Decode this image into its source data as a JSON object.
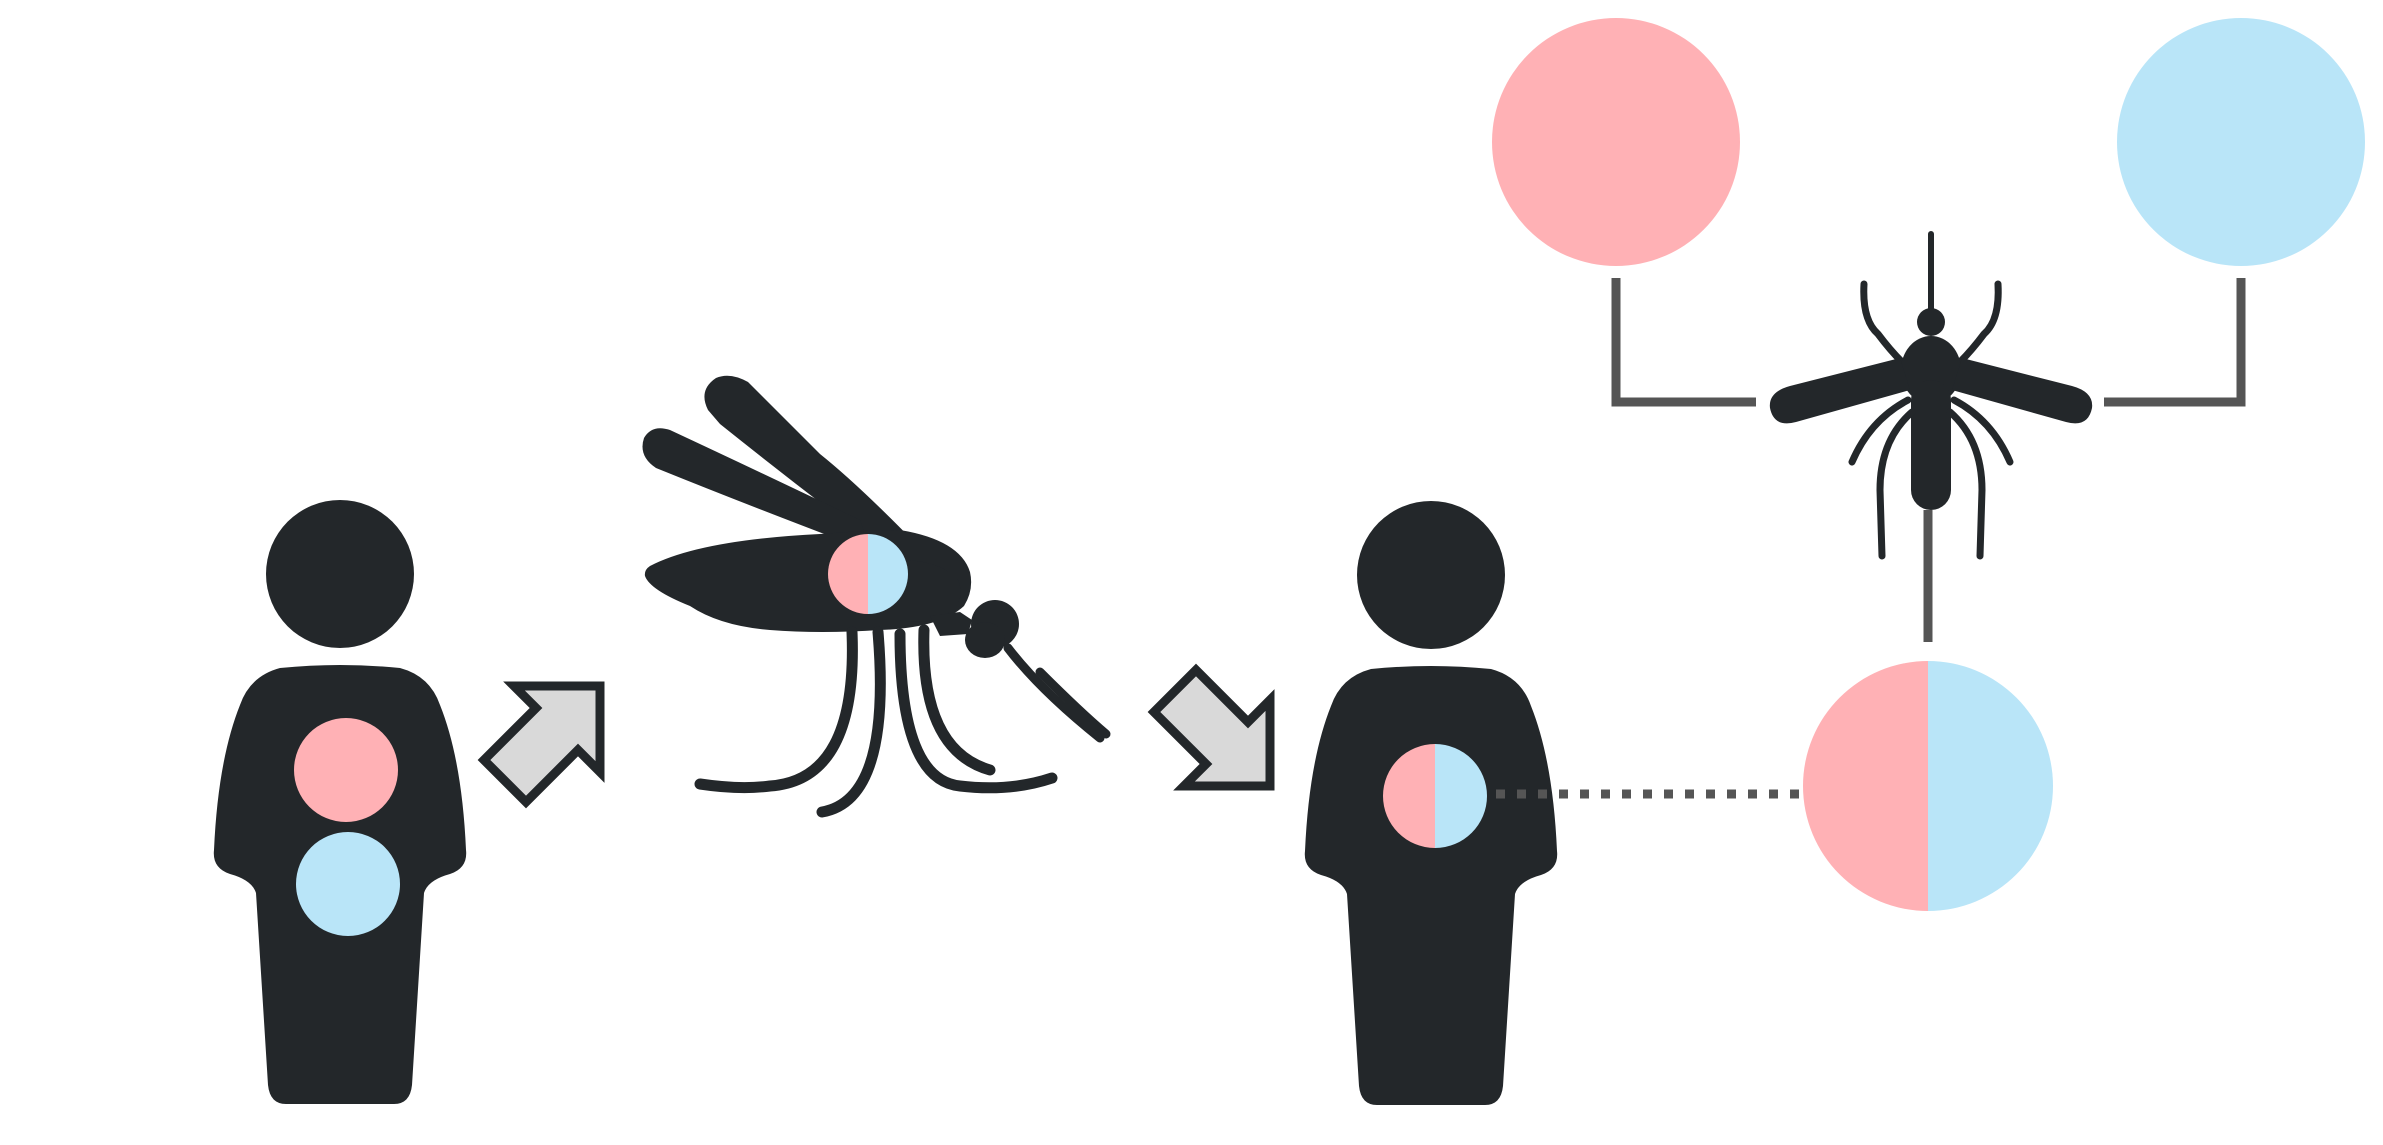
{
  "colors": {
    "ink": "#23272a",
    "pink": "#ffb1b5",
    "blue": "#b9e5f8",
    "line": "#555555",
    "arrow_fill": "#d9d9d9",
    "background": "#ffffff"
  },
  "figures": [
    {
      "name": "person-left",
      "icon": "person-icon",
      "markers": [
        "pink-circle",
        "blue-circle"
      ]
    },
    {
      "name": "mosquito-side",
      "icon": "mosquito-side-icon",
      "markers": [
        "half-pink-half-blue-circle"
      ]
    },
    {
      "name": "person-right",
      "icon": "person-icon",
      "markers": [
        "half-pink-half-blue-circle"
      ]
    },
    {
      "name": "mosquito-top",
      "icon": "mosquito-top-icon",
      "markers": []
    }
  ],
  "legend_circles": [
    {
      "name": "pink-parent-circle",
      "fill": "pink"
    },
    {
      "name": "blue-parent-circle",
      "fill": "blue"
    },
    {
      "name": "hybrid-circle",
      "fill": "pink+blue"
    }
  ],
  "arrows": [
    {
      "name": "arrow-person-to-mosquito",
      "icon": "arrow-up-right-icon"
    },
    {
      "name": "arrow-mosquito-to-person",
      "icon": "arrow-down-right-icon"
    }
  ]
}
